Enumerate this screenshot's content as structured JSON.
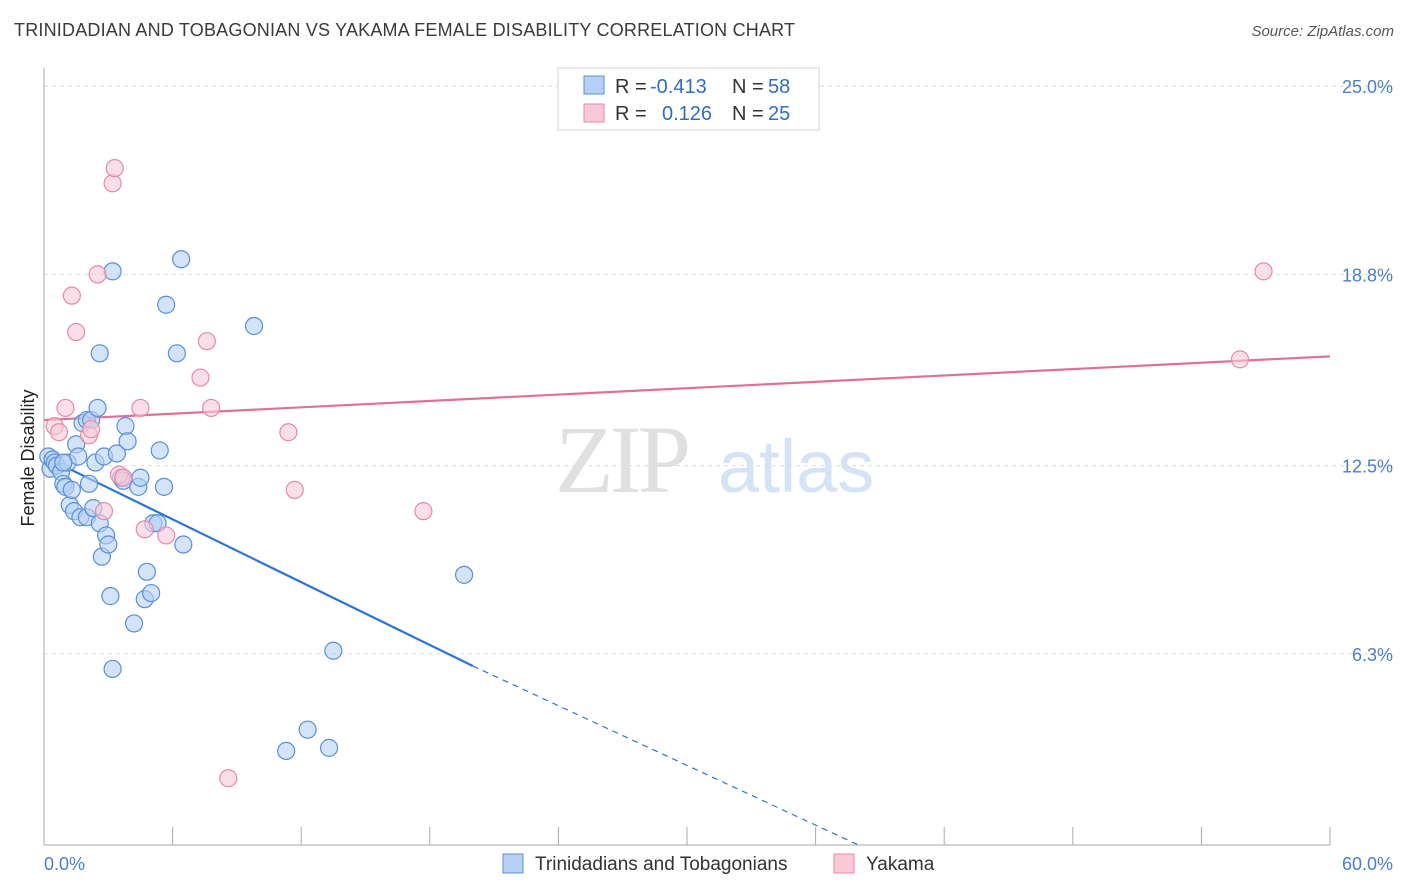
{
  "header": {
    "title": "TRINIDADIAN AND TOBAGONIAN VS YAKAMA FEMALE DISABILITY CORRELATION CHART",
    "source": "Source: ZipAtlas.com"
  },
  "watermark": {
    "zip": "ZIP",
    "atlas": "atlas"
  },
  "legend": {
    "rows": [
      {
        "r_label": "R =",
        "r_value": "-0.413",
        "n_label": "N =",
        "n_value": "58"
      },
      {
        "r_label": "R =",
        "r_value": "0.126",
        "n_label": "N =",
        "n_value": "25"
      }
    ]
  },
  "chart_data": {
    "type": "scatter",
    "title": "TRINIDADIAN AND TOBAGONIAN VS YAKAMA FEMALE DISABILITY CORRELATION CHART",
    "xlabel": "",
    "ylabel": "Female Disability",
    "xlim": [
      0,
      60
    ],
    "ylim": [
      0,
      25.6
    ],
    "x_tick_labels": {
      "left": "0.0%",
      "right": "60.0%"
    },
    "y_ticks": [
      {
        "value": 6.3,
        "label": "6.3%"
      },
      {
        "value": 12.5,
        "label": "12.5%"
      },
      {
        "value": 18.8,
        "label": "18.8%"
      },
      {
        "value": 25.0,
        "label": "25.0%"
      }
    ],
    "colors": {
      "blue_fill": "#b5d0f4",
      "blue_stroke": "#5a8fd6",
      "blue_line": "#2e74d4",
      "pink_fill": "#f9c9d8",
      "pink_stroke": "#e68aa8",
      "pink_line": "#e0709a",
      "tick_label": "#4a7fc8",
      "grid": "#dddddd"
    },
    "series": [
      {
        "name": "Trinidadians and Tobagonians",
        "color": "blue",
        "points": [
          [
            0.2,
            12.8
          ],
          [
            0.3,
            12.4
          ],
          [
            0.4,
            12.7
          ],
          [
            0.5,
            12.6
          ],
          [
            0.6,
            12.5
          ],
          [
            0.8,
            12.3
          ],
          [
            0.9,
            11.9
          ],
          [
            1.0,
            11.8
          ],
          [
            1.1,
            12.6
          ],
          [
            1.2,
            11.2
          ],
          [
            1.3,
            11.7
          ],
          [
            1.4,
            11.0
          ],
          [
            1.5,
            13.2
          ],
          [
            1.6,
            12.8
          ],
          [
            1.7,
            10.8
          ],
          [
            1.8,
            13.9
          ],
          [
            2.0,
            14.0
          ],
          [
            2.0,
            10.8
          ],
          [
            2.1,
            11.9
          ],
          [
            2.2,
            14.0
          ],
          [
            2.3,
            11.1
          ],
          [
            2.4,
            12.6
          ],
          [
            2.5,
            14.4
          ],
          [
            2.6,
            10.6
          ],
          [
            2.6,
            16.2
          ],
          [
            2.7,
            9.5
          ],
          [
            2.8,
            12.8
          ],
          [
            2.9,
            10.2
          ],
          [
            3.0,
            9.9
          ],
          [
            3.1,
            8.2
          ],
          [
            3.2,
            5.8
          ],
          [
            3.2,
            18.9
          ],
          [
            3.4,
            12.9
          ],
          [
            3.6,
            12.1
          ],
          [
            3.7,
            12.0
          ],
          [
            3.8,
            13.8
          ],
          [
            3.9,
            13.3
          ],
          [
            4.2,
            7.3
          ],
          [
            4.4,
            11.8
          ],
          [
            4.5,
            12.1
          ],
          [
            4.7,
            8.1
          ],
          [
            4.8,
            9.0
          ],
          [
            5.0,
            8.3
          ],
          [
            5.1,
            10.6
          ],
          [
            5.3,
            10.6
          ],
          [
            5.4,
            13.0
          ],
          [
            5.6,
            11.8
          ],
          [
            5.7,
            17.8
          ],
          [
            6.2,
            16.2
          ],
          [
            6.4,
            19.3
          ],
          [
            6.5,
            9.9
          ],
          [
            9.8,
            17.1
          ],
          [
            11.3,
            3.1
          ],
          [
            12.3,
            3.8
          ],
          [
            13.3,
            3.2
          ],
          [
            13.5,
            6.4
          ],
          [
            19.6,
            8.9
          ],
          [
            0.9,
            12.6
          ]
        ],
        "trend": {
          "x0": 0,
          "y0": 12.8,
          "x1": 20,
          "y1": 5.9,
          "dashed_to_x": 38,
          "dashed_to_y": 0
        }
      },
      {
        "name": "Yakama",
        "color": "pink",
        "points": [
          [
            0.5,
            13.8
          ],
          [
            0.7,
            13.6
          ],
          [
            1.0,
            14.4
          ],
          [
            1.3,
            18.1
          ],
          [
            1.5,
            16.9
          ],
          [
            2.1,
            13.5
          ],
          [
            2.2,
            13.7
          ],
          [
            2.5,
            18.8
          ],
          [
            2.8,
            11.0
          ],
          [
            3.2,
            21.8
          ],
          [
            3.3,
            22.3
          ],
          [
            3.5,
            12.2
          ],
          [
            3.7,
            12.1
          ],
          [
            4.5,
            14.4
          ],
          [
            4.7,
            10.4
          ],
          [
            5.7,
            10.2
          ],
          [
            7.3,
            15.4
          ],
          [
            7.6,
            16.6
          ],
          [
            7.8,
            14.4
          ],
          [
            8.6,
            2.2
          ],
          [
            11.4,
            13.6
          ],
          [
            11.7,
            11.7
          ],
          [
            17.7,
            11.0
          ],
          [
            55.8,
            16.0
          ],
          [
            56.9,
            18.9
          ]
        ],
        "trend": {
          "x0": 0,
          "y0": 14.0,
          "x1": 60,
          "y1": 16.1
        }
      }
    ]
  }
}
